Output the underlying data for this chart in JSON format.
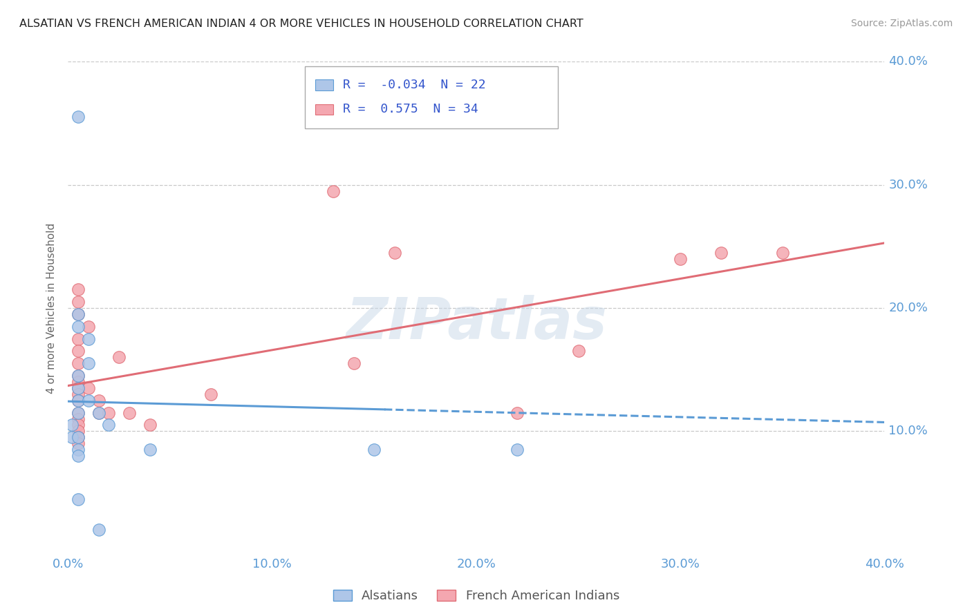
{
  "title": "ALSATIAN VS FRENCH AMERICAN INDIAN 4 OR MORE VEHICLES IN HOUSEHOLD CORRELATION CHART",
  "source": "Source: ZipAtlas.com",
  "ylabel": "4 or more Vehicles in Household",
  "xmin": 0.0,
  "xmax": 0.4,
  "ymin": 0.0,
  "ymax": 0.4,
  "yticks": [
    0.1,
    0.2,
    0.3,
    0.4
  ],
  "xticks": [
    0.0,
    0.1,
    0.2,
    0.3,
    0.4
  ],
  "ytick_labels": [
    "10.0%",
    "20.0%",
    "30.0%",
    "40.0%"
  ],
  "xtick_labels": [
    "0.0%",
    "10.0%",
    "20.0%",
    "30.0%",
    "40.0%"
  ],
  "legend_labels_bottom": [
    "Alsatians",
    "French American Indians"
  ],
  "alsatian_color": "#aec6e8",
  "french_color": "#f4a7b0",
  "alsatian_line_color": "#5b9bd5",
  "french_line_color": "#e06c75",
  "watermark": "ZIPatlas",
  "alsatian_R": -0.034,
  "alsatian_N": 22,
  "french_R": 0.575,
  "french_N": 34,
  "background_color": "#ffffff",
  "grid_color": "#c8c8c8",
  "tick_label_color": "#5b9bd5",
  "alsatian_points": [
    [
      0.005,
      0.355
    ],
    [
      0.005,
      0.195
    ],
    [
      0.005,
      0.185
    ],
    [
      0.01,
      0.175
    ],
    [
      0.01,
      0.155
    ],
    [
      0.005,
      0.145
    ],
    [
      0.005,
      0.135
    ],
    [
      0.005,
      0.125
    ],
    [
      0.005,
      0.115
    ],
    [
      0.002,
      0.105
    ],
    [
      0.002,
      0.095
    ],
    [
      0.005,
      0.095
    ],
    [
      0.005,
      0.085
    ],
    [
      0.005,
      0.08
    ],
    [
      0.01,
      0.125
    ],
    [
      0.015,
      0.115
    ],
    [
      0.02,
      0.105
    ],
    [
      0.04,
      0.085
    ],
    [
      0.15,
      0.085
    ],
    [
      0.22,
      0.085
    ],
    [
      0.005,
      0.045
    ],
    [
      0.015,
      0.02
    ]
  ],
  "french_points": [
    [
      0.13,
      0.295
    ],
    [
      0.005,
      0.215
    ],
    [
      0.005,
      0.205
    ],
    [
      0.005,
      0.195
    ],
    [
      0.01,
      0.185
    ],
    [
      0.005,
      0.175
    ],
    [
      0.005,
      0.165
    ],
    [
      0.005,
      0.155
    ],
    [
      0.005,
      0.145
    ],
    [
      0.005,
      0.14
    ],
    [
      0.005,
      0.135
    ],
    [
      0.005,
      0.13
    ],
    [
      0.005,
      0.125
    ],
    [
      0.005,
      0.115
    ],
    [
      0.005,
      0.11
    ],
    [
      0.005,
      0.105
    ],
    [
      0.005,
      0.1
    ],
    [
      0.005,
      0.095
    ],
    [
      0.005,
      0.09
    ],
    [
      0.01,
      0.135
    ],
    [
      0.015,
      0.125
    ],
    [
      0.015,
      0.115
    ],
    [
      0.02,
      0.115
    ],
    [
      0.025,
      0.16
    ],
    [
      0.03,
      0.115
    ],
    [
      0.04,
      0.105
    ],
    [
      0.07,
      0.13
    ],
    [
      0.14,
      0.155
    ],
    [
      0.22,
      0.115
    ],
    [
      0.3,
      0.24
    ],
    [
      0.32,
      0.245
    ],
    [
      0.25,
      0.165
    ],
    [
      0.35,
      0.245
    ],
    [
      0.16,
      0.245
    ]
  ]
}
